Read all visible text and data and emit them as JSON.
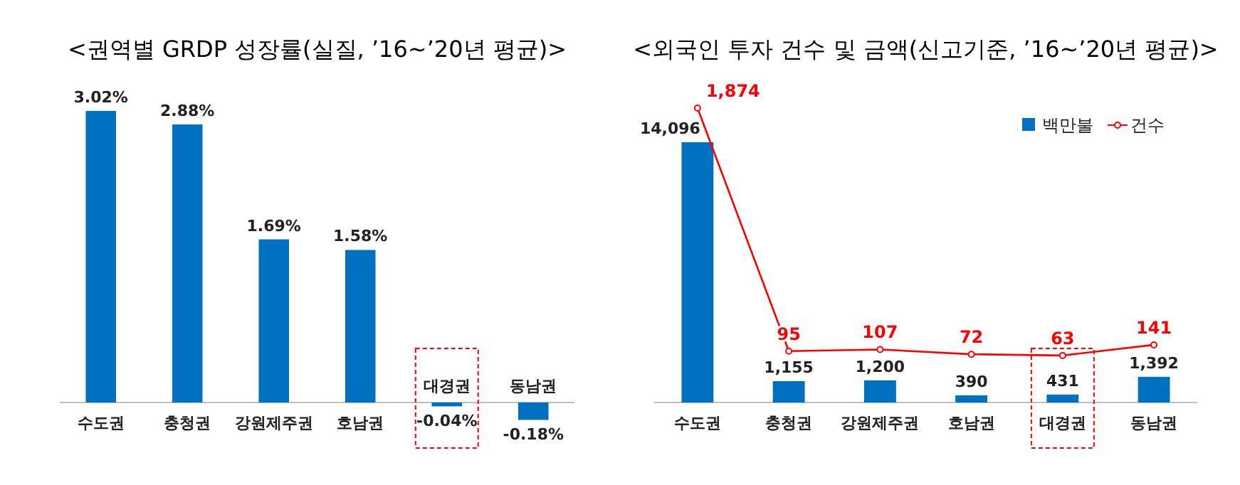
{
  "chart_data": [
    {
      "type": "bar",
      "title": "<권역별 GRDP 성장률(실질, ’16~’20년 평균)>",
      "categories": [
        "수도권",
        "충청권",
        "강원제주권",
        "호남권",
        "대경권",
        "동남권"
      ],
      "values": [
        3.02,
        2.88,
        1.69,
        1.58,
        -0.04,
        -0.18
      ],
      "value_labels": [
        "3.02%",
        "2.88%",
        "1.69%",
        "1.58%",
        "-0.04%",
        "-0.18%"
      ],
      "color": "#0070c0"
    },
    {
      "type": "bar",
      "title": "<외국인 투자 건수 및 금액(신고기준, ’16~’20년 평균)>",
      "categories": [
        "수도권",
        "충청권",
        "강원제주권",
        "호남권",
        "대경권",
        "동남권"
      ],
      "legend": "top right",
      "marker": "circle",
      "series": [
        {
          "name": "백만불",
          "type": "bar",
          "color": "#0070c0",
          "values": [
            14096,
            1155,
            1200,
            390,
            431,
            1392
          ],
          "value_labels": [
            "14,096",
            "1,155",
            "1,200",
            "390",
            "431",
            "1,392"
          ]
        },
        {
          "name": "건수",
          "type": "line",
          "axis": "y2",
          "color": "#ff0000",
          "values": [
            1874,
            95,
            107,
            72,
            63,
            141
          ],
          "value_labels": [
            "1,874",
            "95",
            "107",
            "72",
            "63",
            "141"
          ]
        }
      ]
    }
  ]
}
